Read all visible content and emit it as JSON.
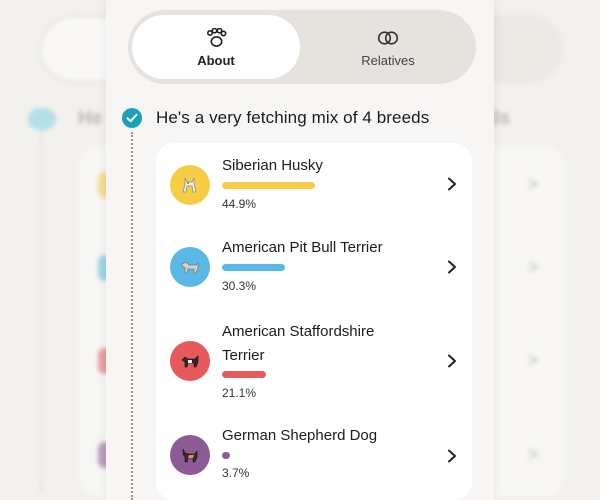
{
  "tabs": [
    {
      "label": "About",
      "icon": "paw-icon",
      "active": true
    },
    {
      "label": "Relatives",
      "icon": "rings-icon",
      "active": false
    }
  ],
  "heading": "He's a very fetching mix of 4 breeds",
  "background": {
    "heading_left": "He",
    "heading_right": "ds"
  },
  "colors": {
    "accent": "#1aa0b8",
    "husky": "#f7cd45",
    "pitbull": "#5ab9e4",
    "staffordshire": "#e65a5c",
    "shepherd": "#8c5a95"
  },
  "breeds": [
    {
      "name": "Siberian Husky",
      "name_line2": "",
      "percent": "44.9%",
      "value": 44.9,
      "color": "#f7cd45",
      "icon": "husky-icon"
    },
    {
      "name": "American Pit Bull Terrier",
      "name_line2": "",
      "percent": "30.3%",
      "value": 30.3,
      "color": "#5ab9e4",
      "icon": "pitbull-icon"
    },
    {
      "name": "American Staffordshire",
      "name_line2": "Terrier",
      "percent": "21.1%",
      "value": 21.1,
      "color": "#e65a5c",
      "icon": "staffordshire-icon"
    },
    {
      "name": "German Shepherd Dog",
      "name_line2": "",
      "percent": "3.7%",
      "value": 3.7,
      "color": "#8c5a95",
      "icon": "shepherd-icon"
    }
  ]
}
